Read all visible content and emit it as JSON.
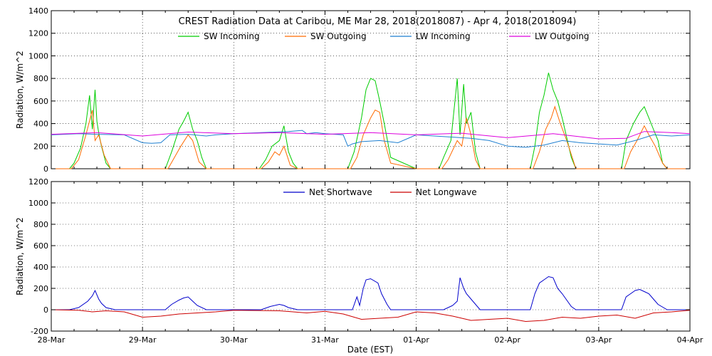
{
  "figure": {
    "title": "CREST Radiation Data at Caribou, ME   Mar 28, 2018(2018087) - Apr  4, 2018(2018094)",
    "xlabel": "Date (EST)"
  },
  "colors": {
    "sw_in": "#00cc00",
    "sw_out": "#ff6a00",
    "lw_in": "#1e7fd0",
    "lw_out": "#dd00dd",
    "net_sw": "#0000cc",
    "net_lw": "#cc0000",
    "axis": "#000000",
    "grid": "#000000"
  },
  "chart_data": [
    {
      "type": "line",
      "ylabel": "Radiation, W/m^2",
      "ylim": [
        0,
        1400
      ],
      "yticks": [
        0,
        200,
        400,
        600,
        800,
        1000,
        1200,
        1400
      ],
      "xlim": [
        0,
        7
      ],
      "xtick_labels": [
        "28-Mar",
        "29-Mar",
        "30-Mar",
        "31-Mar",
        "01-Apr",
        "02-Apr",
        "03-Apr",
        "04-Apr"
      ],
      "grid": true,
      "legend": "top",
      "series": [
        {
          "name": "SW Incoming",
          "color_key": "sw_in",
          "x": [
            0,
            0.2,
            0.25,
            0.32,
            0.38,
            0.42,
            0.45,
            0.48,
            0.5,
            0.52,
            0.55,
            0.6,
            0.65,
            0.7,
            1.0,
            1.25,
            1.32,
            1.4,
            1.45,
            1.5,
            1.55,
            1.6,
            1.65,
            1.7,
            2.0,
            2.28,
            2.35,
            2.42,
            2.5,
            2.55,
            2.6,
            2.65,
            2.7,
            3.0,
            3.25,
            3.32,
            3.4,
            3.45,
            3.5,
            3.55,
            3.6,
            3.65,
            3.72,
            4.0,
            4.25,
            4.3,
            4.38,
            4.45,
            4.48,
            4.52,
            4.55,
            4.6,
            4.65,
            4.7,
            5.0,
            5.25,
            5.3,
            5.35,
            5.4,
            5.45,
            5.5,
            5.55,
            5.6,
            5.7,
            5.75,
            6.0,
            6.25,
            6.3,
            6.38,
            6.45,
            6.5,
            6.55,
            6.6,
            6.65,
            6.7,
            6.75,
            7.0
          ],
          "y": [
            0,
            0,
            50,
            180,
            400,
            650,
            350,
            700,
            420,
            320,
            200,
            50,
            0,
            0,
            0,
            0,
            150,
            350,
            420,
            500,
            350,
            250,
            100,
            0,
            0,
            0,
            80,
            200,
            250,
            380,
            150,
            50,
            0,
            0,
            0,
            150,
            450,
            700,
            800,
            780,
            600,
            400,
            100,
            0,
            0,
            100,
            250,
            800,
            300,
            750,
            400,
            500,
            150,
            0,
            0,
            0,
            200,
            500,
            650,
            850,
            700,
            600,
            450,
            100,
            0,
            0,
            0,
            250,
            400,
            500,
            550,
            450,
            350,
            250,
            50,
            0,
            0
          ]
        },
        {
          "name": "SW Outgoing",
          "color_key": "sw_out",
          "x": [
            0,
            0.22,
            0.3,
            0.38,
            0.45,
            0.48,
            0.52,
            0.58,
            0.65,
            0.7,
            1.0,
            1.28,
            1.35,
            1.42,
            1.5,
            1.55,
            1.62,
            1.7,
            2.0,
            2.3,
            2.38,
            2.45,
            2.5,
            2.55,
            2.62,
            2.7,
            3.0,
            3.28,
            3.35,
            3.42,
            3.5,
            3.55,
            3.6,
            3.65,
            3.72,
            4.0,
            4.28,
            4.35,
            4.45,
            4.5,
            4.55,
            4.6,
            4.65,
            4.7,
            5.0,
            5.28,
            5.35,
            5.42,
            5.48,
            5.52,
            5.58,
            5.65,
            5.75,
            6.0,
            6.28,
            6.35,
            6.42,
            6.5,
            6.55,
            6.62,
            6.7,
            6.75,
            7.0
          ],
          "y": [
            0,
            0,
            80,
            300,
            520,
            250,
            300,
            120,
            0,
            0,
            0,
            0,
            100,
            200,
            300,
            250,
            60,
            0,
            0,
            0,
            60,
            150,
            120,
            200,
            30,
            0,
            0,
            0,
            100,
            300,
            450,
            520,
            500,
            250,
            50,
            0,
            0,
            80,
            250,
            200,
            450,
            300,
            80,
            0,
            0,
            0,
            150,
            350,
            450,
            550,
            400,
            250,
            0,
            0,
            0,
            150,
            250,
            380,
            300,
            200,
            50,
            0,
            0
          ]
        },
        {
          "name": "LW Incoming",
          "color_key": "lw_in",
          "x": [
            0,
            0.3,
            0.5,
            0.8,
            1.0,
            1.1,
            1.2,
            1.3,
            1.5,
            1.7,
            1.8,
            2.0,
            2.3,
            2.6,
            2.75,
            2.8,
            2.9,
            3.0,
            3.2,
            3.25,
            3.3,
            3.4,
            3.6,
            3.8,
            4.0,
            4.2,
            4.4,
            4.6,
            4.8,
            5.0,
            5.2,
            5.4,
            5.6,
            5.8,
            6.0,
            6.2,
            6.4,
            6.6,
            6.8,
            7.0
          ],
          "y": [
            300,
            310,
            305,
            300,
            230,
            225,
            230,
            300,
            305,
            290,
            300,
            310,
            320,
            330,
            340,
            310,
            320,
            310,
            300,
            200,
            220,
            240,
            250,
            230,
            300,
            290,
            280,
            270,
            250,
            200,
            190,
            210,
            250,
            230,
            220,
            210,
            250,
            300,
            290,
            300
          ]
        },
        {
          "name": "LW Outgoing",
          "color_key": "lw_out",
          "x": [
            0,
            0.5,
            1.0,
            1.5,
            2.0,
            2.5,
            3.0,
            3.5,
            4.0,
            4.5,
            5.0,
            5.5,
            6.0,
            6.3,
            6.5,
            6.8,
            7.0
          ],
          "y": [
            305,
            320,
            290,
            325,
            310,
            320,
            305,
            320,
            300,
            315,
            275,
            310,
            265,
            270,
            330,
            320,
            310
          ]
        }
      ]
    },
    {
      "type": "line",
      "ylabel": "Radiation, W/m^2",
      "ylim": [
        -200,
        1200
      ],
      "yticks": [
        -200,
        0,
        200,
        400,
        600,
        800,
        1000,
        1200
      ],
      "xlim": [
        0,
        7
      ],
      "xtick_labels": [
        "28-Mar",
        "29-Mar",
        "30-Mar",
        "31-Mar",
        "01-Apr",
        "02-Apr",
        "03-Apr",
        "04-Apr"
      ],
      "grid": true,
      "legend": "top",
      "series": [
        {
          "name": "Net Shortwave",
          "color_key": "net_sw",
          "x": [
            0,
            0.2,
            0.3,
            0.4,
            0.45,
            0.48,
            0.52,
            0.55,
            0.6,
            0.7,
            1.0,
            1.25,
            1.32,
            1.4,
            1.45,
            1.5,
            1.55,
            1.6,
            1.7,
            2.0,
            2.3,
            2.4,
            2.5,
            2.55,
            2.6,
            2.7,
            3.0,
            3.3,
            3.35,
            3.38,
            3.42,
            3.45,
            3.5,
            3.58,
            3.62,
            3.68,
            3.72,
            4.0,
            4.3,
            4.4,
            4.45,
            4.48,
            4.52,
            4.55,
            4.6,
            4.7,
            5.0,
            5.25,
            5.3,
            5.35,
            5.4,
            5.45,
            5.5,
            5.55,
            5.6,
            5.7,
            5.75,
            6.0,
            6.25,
            6.3,
            6.35,
            6.4,
            6.45,
            6.5,
            6.55,
            6.6,
            6.65,
            6.75,
            7.0
          ],
          "y": [
            0,
            0,
            20,
            80,
            130,
            180,
            100,
            60,
            20,
            0,
            0,
            0,
            50,
            90,
            110,
            120,
            80,
            40,
            0,
            0,
            0,
            30,
            50,
            40,
            20,
            0,
            0,
            0,
            120,
            40,
            200,
            280,
            290,
            250,
            150,
            50,
            0,
            0,
            0,
            40,
            80,
            300,
            200,
            150,
            100,
            0,
            0,
            0,
            150,
            250,
            280,
            310,
            300,
            200,
            150,
            30,
            0,
            0,
            0,
            120,
            150,
            180,
            190,
            170,
            150,
            100,
            50,
            0,
            0
          ]
        },
        {
          "name": "Net Longwave",
          "color_key": "net_lw",
          "x": [
            0,
            0.3,
            0.45,
            0.6,
            0.8,
            1.0,
            1.2,
            1.4,
            1.6,
            1.8,
            2.0,
            2.5,
            2.8,
            3.0,
            3.2,
            3.4,
            3.6,
            3.8,
            4.0,
            4.2,
            4.4,
            4.6,
            4.8,
            5.0,
            5.2,
            5.4,
            5.6,
            5.8,
            6.0,
            6.2,
            6.4,
            6.6,
            6.8,
            7.0
          ],
          "y": [
            0,
            -5,
            -20,
            -10,
            -20,
            -70,
            -60,
            -40,
            -30,
            -20,
            -5,
            -10,
            -30,
            -15,
            -40,
            -90,
            -80,
            -70,
            -20,
            -30,
            -60,
            -100,
            -90,
            -80,
            -110,
            -100,
            -70,
            -80,
            -60,
            -50,
            -80,
            -30,
            -20,
            -5
          ]
        }
      ]
    }
  ]
}
